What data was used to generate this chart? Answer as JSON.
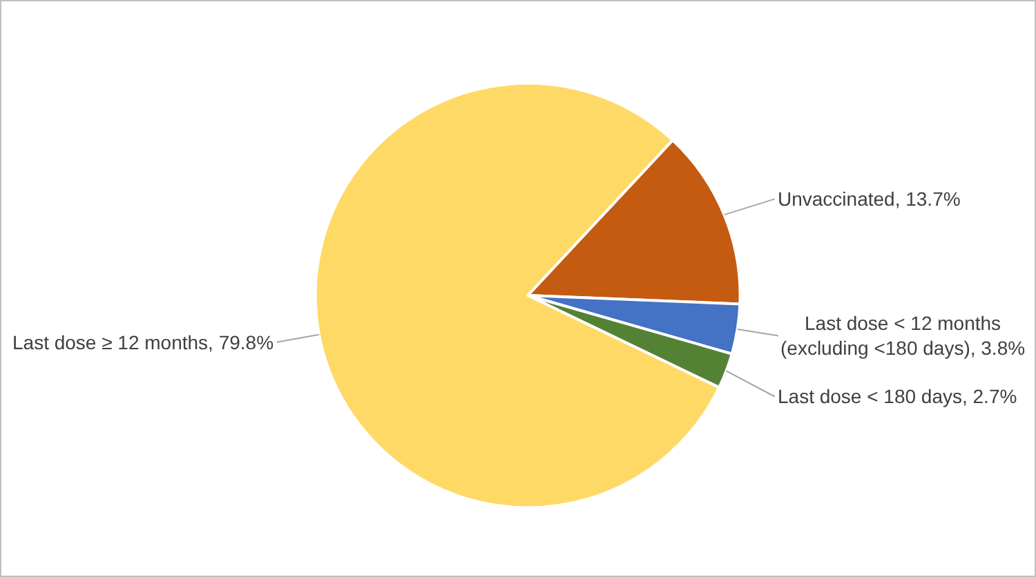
{
  "chart_data": {
    "type": "pie",
    "categories": [
      "Unvaccinated",
      "Last dose < 12 months (excluding <180 days)",
      "Last dose < 180 days",
      "Last dose ≥ 12 months"
    ],
    "values": [
      13.7,
      3.8,
      2.7,
      79.8
    ],
    "value_labels": [
      "13.7%",
      "3.8%",
      "2.7%",
      "79.8%"
    ],
    "colors": [
      "#c55a11",
      "#4472c4",
      "#548235",
      "#ffd966"
    ],
    "legend": false
  }
}
